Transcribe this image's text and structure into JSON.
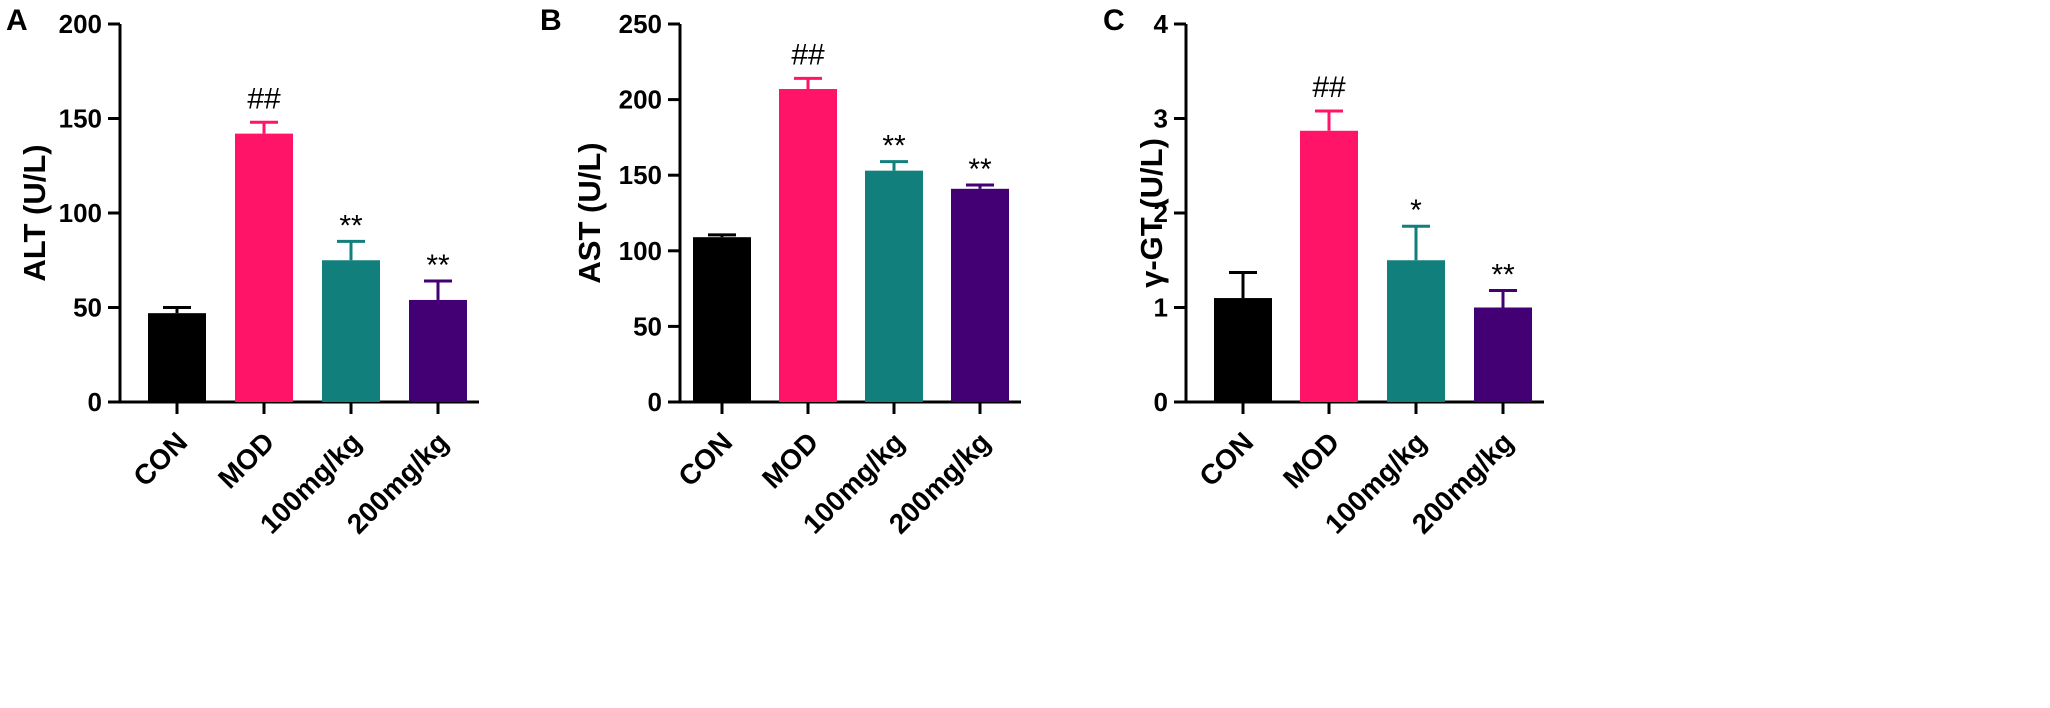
{
  "chart_data": [
    {
      "type": "bar",
      "panel": "A",
      "ylabel": "ALT (U/L)",
      "categories": [
        "CON",
        "MOD",
        "100mg/kg",
        "200mg/kg"
      ],
      "values": [
        47,
        142,
        75,
        54
      ],
      "errors": [
        3,
        6,
        10,
        10
      ],
      "annotations": [
        "",
        "##",
        "**",
        "**"
      ],
      "ylim": [
        0,
        200
      ],
      "yticks": [
        0,
        50,
        100,
        150,
        200
      ],
      "colors": [
        "#000000",
        "#FF1468",
        "#117F7C",
        "#420074"
      ]
    },
    {
      "type": "bar",
      "panel": "B",
      "ylabel": "AST (U/L)",
      "categories": [
        "CON",
        "MOD",
        "100mg/kg",
        "200mg/kg"
      ],
      "values": [
        109,
        207,
        153,
        141
      ],
      "errors": [
        1.5,
        7,
        6,
        2.5
      ],
      "annotations": [
        "",
        "##",
        "**",
        "**"
      ],
      "ylim": [
        0,
        250
      ],
      "yticks": [
        0,
        50,
        100,
        150,
        200,
        250
      ],
      "colors": [
        "#000000",
        "#FF1468",
        "#117F7C",
        "#420074"
      ]
    },
    {
      "type": "bar",
      "panel": "C",
      "ylabel": "γ-GT (U/L)",
      "categories": [
        "CON",
        "MOD",
        "100mg/kg",
        "200mg/kg"
      ],
      "values": [
        1.1,
        2.87,
        1.5,
        1.0
      ],
      "errors": [
        0.27,
        0.21,
        0.36,
        0.18
      ],
      "annotations": [
        "",
        "##",
        "*",
        "**"
      ],
      "ylim": [
        0,
        4
      ],
      "yticks": [
        0,
        1,
        2,
        3,
        4
      ],
      "colors": [
        "#000000",
        "#FF1468",
        "#117F7C",
        "#420074"
      ]
    }
  ]
}
